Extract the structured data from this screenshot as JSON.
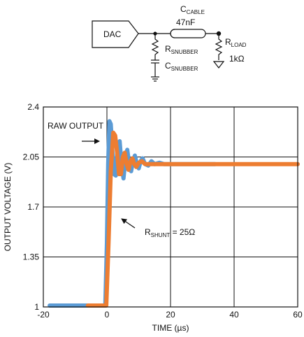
{
  "schematic": {
    "dac_label": "DAC",
    "c_cable": "C",
    "c_cable_sub": "CABLE",
    "c_cable_value": "47nF",
    "r_snubber": "R",
    "r_snubber_sub": "SNUBBER",
    "c_snubber": "C",
    "c_snubber_sub": "SNUBBER",
    "r_load": "R",
    "r_load_sub": "LOAD",
    "r_load_value": "1kΩ"
  },
  "annotations": {
    "raw_output": "RAW OUTPUT",
    "r_shunt": "R",
    "r_shunt_sub": "SHUNT",
    "r_shunt_value": " = 25Ω"
  },
  "colors": {
    "raw_output": "#5b9bd5",
    "with_shunt": "#ed7d31"
  },
  "chart_data": {
    "type": "line",
    "xlabel": "TIME (µs)",
    "ylabel": "OUTPUT VOLTAGE (V)",
    "xlim": [
      -20,
      60
    ],
    "ylim": [
      1,
      2.4
    ],
    "xticks": [
      "-20",
      "0",
      "20",
      "40",
      "60"
    ],
    "yticks": [
      "1",
      "1.35",
      "1.7",
      "2.05",
      "2.4"
    ],
    "grid": true,
    "series": [
      {
        "key": "raw_output",
        "x": [
          -18,
          -0.5,
          0,
          0.4,
          0.8,
          1.2,
          1.6,
          2.2,
          2.8,
          3.4,
          4.0,
          4.6,
          5.2,
          5.8,
          6.4,
          7.0,
          7.6,
          8.2,
          8.8,
          9.4,
          10.0,
          10.6,
          11.2,
          12.0,
          13.0,
          14.0,
          15.0,
          16.5,
          18,
          20,
          22,
          26,
          30,
          34
        ],
        "y": [
          1.01,
          1.01,
          1.45,
          2.0,
          2.3,
          2.28,
          2.13,
          1.93,
          1.92,
          2.12,
          2.16,
          2.0,
          1.9,
          2.03,
          2.1,
          2.0,
          1.95,
          2.02,
          2.06,
          2.0,
          1.97,
          2.02,
          2.04,
          2.0,
          1.99,
          2.02,
          2.0,
          2.01,
          2.0,
          2.0,
          2.0,
          2.0,
          2.0,
          2.0
        ]
      },
      {
        "key": "with_shunt",
        "x": [
          -6,
          -0.2,
          0.5,
          1.2,
          2.0,
          2.6,
          3.2,
          3.8,
          4.4,
          5.0,
          5.6,
          6.2,
          6.8,
          7.4,
          8.0,
          8.6,
          9.2,
          10.0,
          11.0,
          12.0,
          14.0,
          16.0,
          20,
          30,
          34,
          40,
          50,
          60
        ],
        "y": [
          1.01,
          1.01,
          1.45,
          1.95,
          2.22,
          2.2,
          2.08,
          1.93,
          1.93,
          2.05,
          2.08,
          2.0,
          1.96,
          2.02,
          2.04,
          2.0,
          1.98,
          2.01,
          2.02,
          2.0,
          2.0,
          2.0,
          2.0,
          2.0,
          2.0,
          2.0,
          2.0,
          2.0
        ]
      }
    ]
  }
}
